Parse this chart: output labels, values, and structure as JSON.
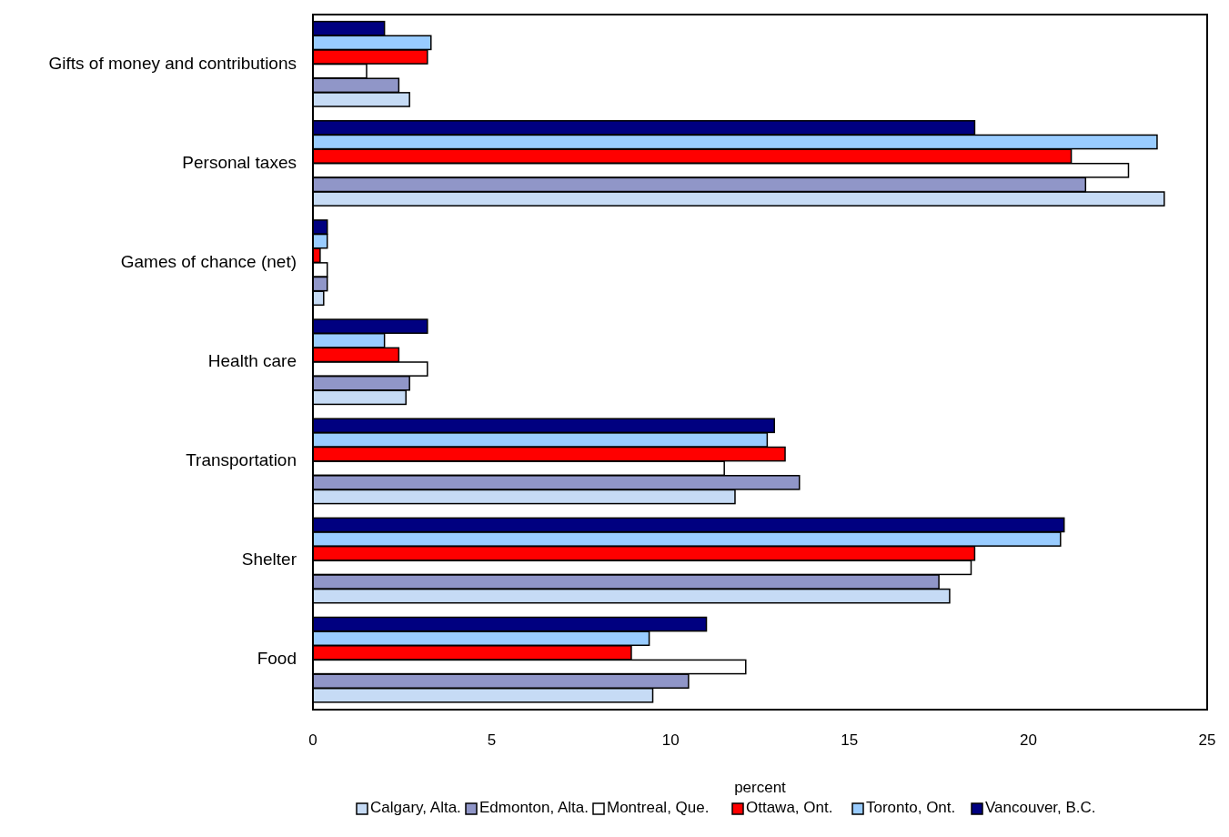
{
  "chart_data": {
    "type": "bar",
    "orientation": "horizontal",
    "xlabel": "percent",
    "categories": [
      "Gifts of money and contributions",
      "Personal taxes",
      "Games of chance (net)",
      "Health care",
      "Transportation",
      "Shelter",
      "Food"
    ],
    "series": [
      {
        "name": "Calgary, Alta.",
        "color": "#c6dbf5",
        "values": [
          2.7,
          23.8,
          0.3,
          2.6,
          11.8,
          17.8,
          9.5
        ]
      },
      {
        "name": "Edmonton, Alta.",
        "color": "#9096c8",
        "values": [
          2.4,
          21.6,
          0.4,
          2.7,
          13.6,
          17.5,
          10.5
        ]
      },
      {
        "name": "Montreal, Que.",
        "color": "#ffffff",
        "values": [
          1.5,
          22.8,
          0.4,
          3.2,
          11.5,
          18.4,
          12.1
        ]
      },
      {
        "name": "Ottawa, Ont.",
        "color": "#ff0000",
        "values": [
          3.2,
          21.2,
          0.2,
          2.4,
          13.2,
          18.5,
          8.9
        ]
      },
      {
        "name": "Toronto, Ont.",
        "color": "#99ccff",
        "values": [
          3.3,
          23.6,
          0.4,
          2.0,
          12.7,
          20.9,
          9.4
        ]
      },
      {
        "name": "Vancouver, B.C.",
        "color": "#000080",
        "values": [
          2.0,
          18.5,
          0.4,
          3.2,
          12.9,
          21.0,
          11.0
        ]
      }
    ],
    "xlim": [
      0,
      25
    ],
    "xticks": [
      0,
      5,
      10,
      15,
      20,
      25
    ],
    "grid": false,
    "legend": "bottom"
  }
}
